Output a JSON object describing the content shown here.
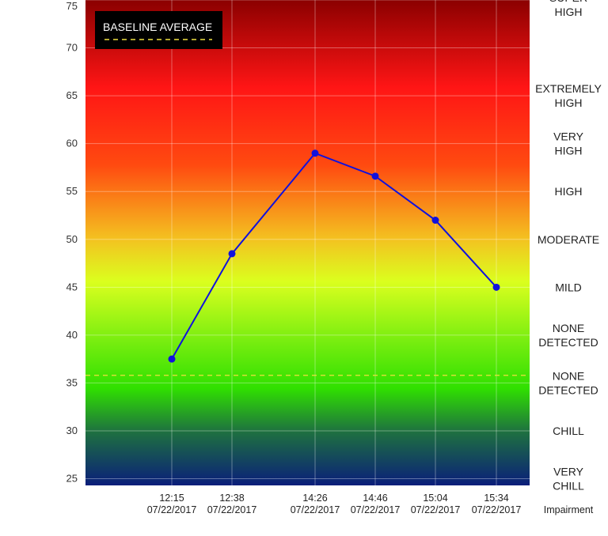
{
  "chart_data": {
    "type": "line",
    "title": "",
    "xlabel": "Impairment",
    "ylabel": "",
    "ylim": [
      24.3,
      75
    ],
    "yticks": [
      25,
      30,
      35,
      40,
      45,
      50,
      55,
      60,
      65,
      70,
      75
    ],
    "grid": true,
    "categories": [
      {
        "time": "12:15",
        "date": "07/22/2017"
      },
      {
        "time": "12:38",
        "date": "07/22/2017"
      },
      {
        "time": "14:26",
        "date": "07/22/2017"
      },
      {
        "time": "14:46",
        "date": "07/22/2017"
      },
      {
        "time": "15:04",
        "date": "07/22/2017"
      },
      {
        "time": "15:34",
        "date": "07/22/2017"
      }
    ],
    "series": [
      {
        "values": [
          37.5,
          48.5,
          59.0,
          56.6,
          52.0,
          45.0
        ],
        "color": "#1111dd"
      }
    ],
    "baseline": {
      "label": "BASELINE AVERAGE",
      "value": 35.8,
      "color": "#f0e040"
    },
    "levels": [
      {
        "label": [
          "SUPER",
          "HIGH"
        ],
        "value": 74.5
      },
      {
        "label": [
          "EXTREMELY",
          "HIGH"
        ],
        "value": 65.0
      },
      {
        "label": [
          "VERY",
          "HIGH"
        ],
        "value": 60.0
      },
      {
        "label": [
          "HIGH"
        ],
        "value": 55.0
      },
      {
        "label": [
          "MODERATE"
        ],
        "value": 50.0
      },
      {
        "label": [
          "MILD"
        ],
        "value": 45.0
      },
      {
        "label": [
          "NONE",
          "DETECTED"
        ],
        "value": 40.0
      },
      {
        "label": [
          "NONE",
          "DETECTED"
        ],
        "value": 35.0
      },
      {
        "label": [
          "CHILL"
        ],
        "value": 30.0
      },
      {
        "label": [
          "VERY",
          "CHILL"
        ],
        "value": 25.0
      }
    ],
    "legend_position": "top-left"
  }
}
